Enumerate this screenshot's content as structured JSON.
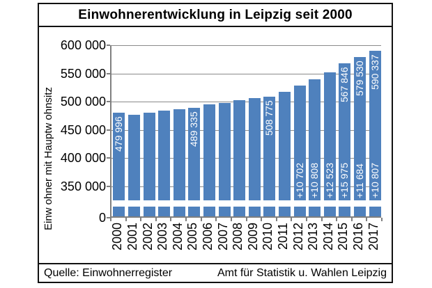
{
  "title": "Einwohnerentwicklung in Leipzig seit 2000",
  "footer": {
    "source": "Quelle: Einwohnerregister",
    "agency": "Amt für Statistik u. Wahlen Leipzig"
  },
  "chart_data": {
    "type": "bar",
    "title": "Einwohnerentwicklung in Leipzig seit 2000",
    "xlabel": "",
    "ylabel": "Einw ohner mit Hauptw ohnsitz",
    "categories": [
      "2000",
      "2001",
      "2002",
      "2003",
      "2004",
      "2005",
      "2006",
      "2007",
      "2008",
      "2009",
      "2010",
      "2011",
      "2012",
      "2013",
      "2014",
      "2015",
      "2016",
      "2017"
    ],
    "values": [
      479996,
      477000,
      480000,
      484500,
      486000,
      489335,
      495000,
      497500,
      503000,
      506000,
      508775,
      517838,
      528540,
      539348,
      551871,
      567846,
      579530,
      590337
    ],
    "bar_value_labels": [
      "479 996",
      null,
      null,
      null,
      null,
      "489 335",
      null,
      null,
      null,
      null,
      "508 775",
      null,
      null,
      null,
      null,
      "567 846",
      "579 530",
      "590 337"
    ],
    "bar_delta_labels": [
      null,
      null,
      null,
      null,
      null,
      null,
      null,
      null,
      null,
      null,
      null,
      null,
      "+10 702",
      "+10 808",
      "+12 523",
      "+15 975",
      "+11 684",
      "+10 807"
    ],
    "ytick_values": [
      0,
      350000,
      400000,
      450000,
      500000,
      550000,
      600000
    ],
    "ytick_labels": [
      "0",
      "350 000",
      "400 000",
      "450 000",
      "500 000",
      "550 000",
      "600 000"
    ],
    "ylim": [
      0,
      600000
    ],
    "axis_break_between": [
      0,
      350000
    ],
    "grid": true,
    "legend": false,
    "bar_color": "#4F81BD",
    "bar_label_color": "#FFFFFF",
    "axis_color": "#7F7F7F",
    "frame_color": "#111111"
  }
}
